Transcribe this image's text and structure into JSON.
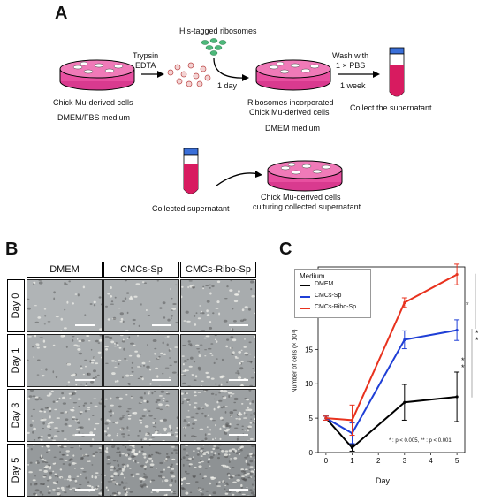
{
  "panelA": {
    "letter": "A",
    "his_label": "His-tagged ribosomes",
    "trypsin": "Trypsin",
    "edta": "EDTA",
    "one_day": "1 day",
    "wash1": "Wash with",
    "wash2": "1 × PBS",
    "one_week": "1 week",
    "chick_cells": "Chick Mu-derived cells",
    "dmem_fbs": "DMEM/FBS medium",
    "ribo_inc1": "Ribosomes incorporated",
    "ribo_inc2": "Chick Mu-derived cells",
    "dmem": "DMEM medium",
    "collect_sup": "Collect the supernatant",
    "collected_sup": "Collected supernatant",
    "culturing1": "Chick Mu-derived cells",
    "culturing2": "culturing collected supernatant"
  },
  "panelB": {
    "letter": "B",
    "columns": [
      "DMEM",
      "CMCs-Sp",
      "CMCs-Ribo-Sp"
    ],
    "rows": [
      "Day 0",
      "Day 1",
      "Day 3",
      "Day 5"
    ]
  },
  "panelC": {
    "letter": "C",
    "legend_title": "Medium",
    "footnote": "* : p < 0.005, ** : p < 0.001",
    "sig": [
      "*",
      "*",
      "*",
      "*",
      "*"
    ]
  },
  "chart_data": {
    "type": "line",
    "x": [
      0,
      1,
      3,
      5
    ],
    "xlabel": "Day",
    "ylabel": "Number of cells (× 10⁴)",
    "xlim": [
      -0.3,
      5.3
    ],
    "ylim": [
      0,
      27
    ],
    "xticks": [
      "0",
      "1",
      "2",
      "3",
      "4",
      "5"
    ],
    "yticks": [
      "0",
      "5",
      "10",
      "15",
      "20",
      "25"
    ],
    "series": [
      {
        "name": "DMEM",
        "color": "#000000",
        "values": [
          5,
          0.7,
          7.3,
          8.1
        ],
        "err": [
          0.3,
          0.5,
          2.6,
          3.6
        ]
      },
      {
        "name": "CMCs-Sp",
        "color": "#1f3fd6",
        "values": [
          5,
          2.8,
          16.4,
          17.8
        ],
        "err": [
          0.3,
          1.5,
          1.3,
          1.5
        ]
      },
      {
        "name": "CMCs-Ribo-Sp",
        "color": "#e8321e",
        "values": [
          5,
          4.7,
          21.8,
          25.9
        ],
        "err": [
          0.3,
          2.2,
          0.7,
          1.5
        ]
      }
    ]
  }
}
